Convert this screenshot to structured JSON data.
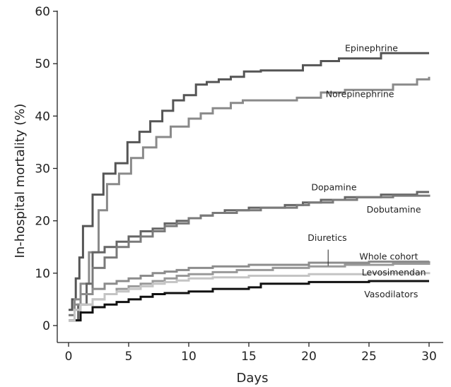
{
  "chart_data": {
    "type": "line",
    "step": true,
    "xlabel": "Days",
    "ylabel": "In-hospital mortality (%)",
    "xlim": [
      0,
      30
    ],
    "ylim": [
      0,
      60
    ],
    "x_ticks": [
      0,
      5,
      10,
      15,
      20,
      25,
      30
    ],
    "y_ticks": [
      0,
      10,
      20,
      30,
      40,
      50,
      60
    ],
    "grid": false,
    "legend": "none (direct labels)",
    "series": [
      {
        "name": "Epinephrine",
        "color": "#555555",
        "points": [
          [
            0,
            3
          ],
          [
            0.3,
            5
          ],
          [
            0.6,
            9
          ],
          [
            0.9,
            13
          ],
          [
            1.2,
            19
          ],
          [
            2,
            25
          ],
          [
            2.9,
            29
          ],
          [
            3.9,
            31
          ],
          [
            4.9,
            35
          ],
          [
            5.9,
            37
          ],
          [
            6.8,
            39
          ],
          [
            7.8,
            41
          ],
          [
            8.7,
            43
          ],
          [
            9.6,
            44
          ],
          [
            10.6,
            46
          ],
          [
            11.5,
            46.5
          ],
          [
            12.5,
            47
          ],
          [
            13.5,
            47.5
          ],
          [
            14.6,
            48.5
          ],
          [
            16,
            48.7
          ],
          [
            19.5,
            49.7
          ],
          [
            21,
            50.5
          ],
          [
            22.5,
            51
          ],
          [
            26,
            52
          ],
          [
            30,
            52
          ]
        ]
      },
      {
        "name": "Norepinephrine",
        "color": "#8a8a8a",
        "points": [
          [
            0,
            1
          ],
          [
            0.5,
            5
          ],
          [
            1,
            8
          ],
          [
            1.7,
            14
          ],
          [
            2.5,
            22
          ],
          [
            3.2,
            27
          ],
          [
            4.2,
            29
          ],
          [
            5.2,
            32
          ],
          [
            6.2,
            34
          ],
          [
            7.3,
            36
          ],
          [
            8.5,
            38
          ],
          [
            10,
            39.5
          ],
          [
            11,
            40.5
          ],
          [
            12,
            41.5
          ],
          [
            13.5,
            42.5
          ],
          [
            14.5,
            43
          ],
          [
            19,
            43.5
          ],
          [
            21,
            44.5
          ],
          [
            23,
            45
          ],
          [
            27,
            46
          ],
          [
            29,
            47
          ],
          [
            30,
            47.5
          ]
        ]
      },
      {
        "name": "Dopamine",
        "color": "#666666",
        "points": [
          [
            0,
            1
          ],
          [
            0.8,
            4
          ],
          [
            1.5,
            8
          ],
          [
            2,
            14
          ],
          [
            3,
            15
          ],
          [
            4,
            16
          ],
          [
            5,
            17
          ],
          [
            6,
            18
          ],
          [
            7,
            18.5
          ],
          [
            8,
            19.5
          ],
          [
            9,
            20
          ],
          [
            10,
            20.5
          ],
          [
            11,
            21
          ],
          [
            12,
            21.5
          ],
          [
            13,
            22
          ],
          [
            15,
            22.5
          ],
          [
            18,
            23
          ],
          [
            19.5,
            23.5
          ],
          [
            21,
            24
          ],
          [
            23,
            24.5
          ],
          [
            26,
            25
          ],
          [
            29,
            25.5
          ],
          [
            30,
            25.5
          ]
        ]
      },
      {
        "name": "Dobutamine",
        "color": "#7a7a7a",
        "points": [
          [
            0,
            2
          ],
          [
            0.5,
            3
          ],
          [
            1,
            6
          ],
          [
            2,
            11
          ],
          [
            3,
            13
          ],
          [
            4,
            15
          ],
          [
            5,
            16
          ],
          [
            6,
            17
          ],
          [
            7,
            18
          ],
          [
            8,
            19
          ],
          [
            9,
            19.5
          ],
          [
            10,
            20.5
          ],
          [
            11,
            21
          ],
          [
            12,
            21.5
          ],
          [
            14,
            22
          ],
          [
            16,
            22.5
          ],
          [
            19,
            23
          ],
          [
            20,
            23.5
          ],
          [
            22,
            24
          ],
          [
            24,
            24.5
          ],
          [
            27,
            24.8
          ],
          [
            30,
            25
          ]
        ]
      },
      {
        "name": "Diuretics",
        "color": "#999999",
        "points": [
          [
            0,
            1
          ],
          [
            1,
            4
          ],
          [
            2,
            5
          ],
          [
            3,
            6
          ],
          [
            4,
            7
          ],
          [
            5,
            7.5
          ],
          [
            6,
            8
          ],
          [
            7,
            8.5
          ],
          [
            8,
            9
          ],
          [
            9,
            9.5
          ],
          [
            10,
            9.8
          ],
          [
            12,
            10.2
          ],
          [
            14,
            10.6
          ],
          [
            17,
            11
          ],
          [
            20,
            11.3
          ],
          [
            23,
            11.6
          ],
          [
            27,
            11.8
          ],
          [
            30,
            12
          ]
        ]
      },
      {
        "name": "Whole cohort",
        "color": "#8c8c8c",
        "points": [
          [
            0,
            1
          ],
          [
            0.5,
            4
          ],
          [
            1,
            6
          ],
          [
            2,
            7
          ],
          [
            3,
            8
          ],
          [
            4,
            8.5
          ],
          [
            5,
            9
          ],
          [
            6,
            9.5
          ],
          [
            7,
            10
          ],
          [
            8,
            10.3
          ],
          [
            9,
            10.6
          ],
          [
            10,
            11
          ],
          [
            12,
            11.3
          ],
          [
            15,
            11.6
          ],
          [
            20,
            12
          ],
          [
            25,
            12.2
          ],
          [
            30,
            12.3
          ]
        ]
      },
      {
        "name": "Levosimendan",
        "color": "#111111",
        "points": [
          [
            0,
            1
          ],
          [
            1,
            2.5
          ],
          [
            2,
            3.5
          ],
          [
            3,
            4
          ],
          [
            4,
            4.5
          ],
          [
            5,
            5
          ],
          [
            6,
            5.5
          ],
          [
            7,
            6
          ],
          [
            8,
            6.2
          ],
          [
            10,
            6.5
          ],
          [
            12,
            7
          ],
          [
            15,
            7.3
          ],
          [
            16,
            8
          ],
          [
            20,
            8.3
          ],
          [
            25,
            8.5
          ],
          [
            30,
            8.5
          ]
        ]
      },
      {
        "name": "Vasodilators",
        "color": "#c4c4c4",
        "points": [
          [
            0,
            1
          ],
          [
            0.5,
            3
          ],
          [
            1,
            4
          ],
          [
            2,
            5
          ],
          [
            3,
            6
          ],
          [
            4,
            6.5
          ],
          [
            5,
            7
          ],
          [
            6,
            7.5
          ],
          [
            7,
            8
          ],
          [
            8,
            8.3
          ],
          [
            9,
            8.6
          ],
          [
            10,
            9
          ],
          [
            12,
            9.2
          ],
          [
            15,
            9.5
          ],
          [
            20,
            9.8
          ],
          [
            25,
            10
          ],
          [
            30,
            10.2
          ]
        ]
      }
    ],
    "annotations": [
      {
        "text": "Epinephrine",
        "x": 23,
        "y": 52.4
      },
      {
        "text": "Norepinephrine",
        "x": 21.4,
        "y": 43.6
      },
      {
        "text": "Dopamine",
        "x": 20.2,
        "y": 25.8
      },
      {
        "text": "Dobutamine",
        "x": 24.8,
        "y": 21.6
      },
      {
        "text": "Diuretics",
        "x": 19.9,
        "y": 16.2
      },
      {
        "text": "Whole cohort",
        "x": 24.2,
        "y": 12.6
      },
      {
        "text": "Levosimendan",
        "x": 24.4,
        "y": 9.6
      },
      {
        "text": "Vasodilators",
        "x": 24.6,
        "y": 5.4
      }
    ]
  }
}
